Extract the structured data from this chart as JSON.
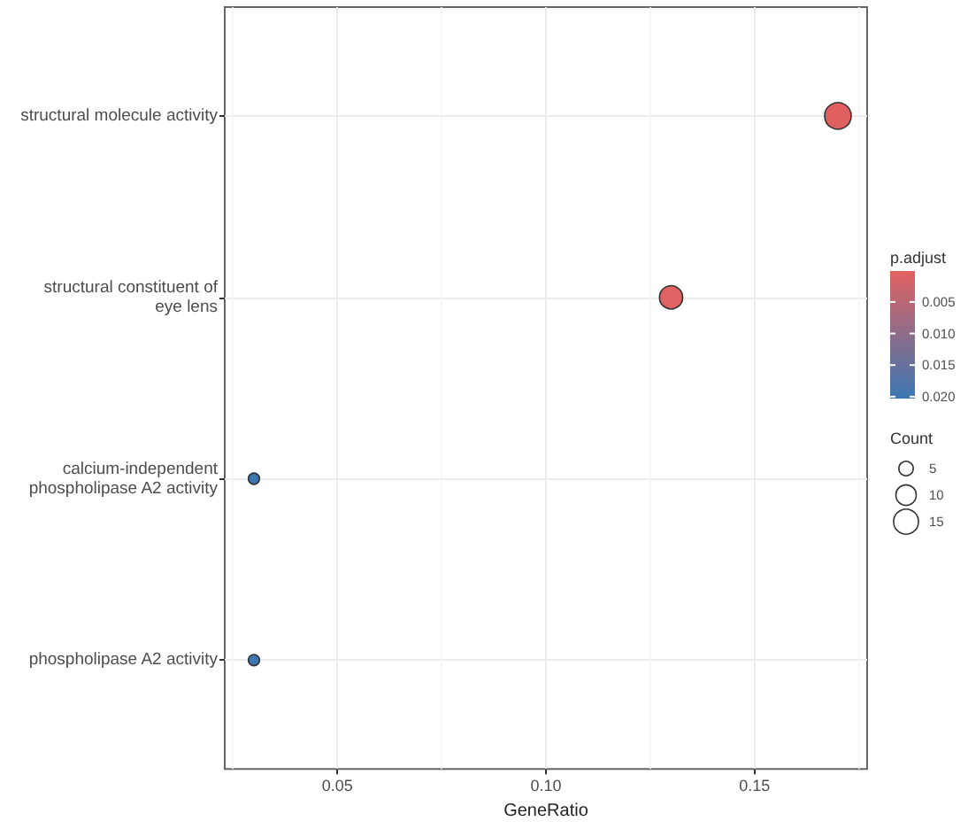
{
  "chart_data": {
    "type": "bubble",
    "orientation": "horizontal",
    "xlabel": "GeneRatio",
    "categories": [
      "structural molecule activity",
      "structural constituent of\neye lens",
      "calcium-independent\nphospholipase A2 activity",
      "phospholipase A2 activity"
    ],
    "values": [
      0.17,
      0.13,
      0.03,
      0.03
    ],
    "sizes": [
      17,
      13,
      3,
      3
    ],
    "size_legend": [
      5,
      10,
      15
    ],
    "cvalues": [
      0.0001,
      0.0003,
      0.0203,
      0.0203
    ],
    "colors": [
      "#e06060",
      "#e06262",
      "#3b77b3",
      "#3b77b3"
    ],
    "clabel": "p.adjust",
    "clim": [
      0.0203,
      0.0001
    ],
    "cticks": [
      0.005,
      {
        "value": 0.01,
        "label": "0.010"
      },
      0.015,
      {
        "value": 0.02,
        "label": "0.020"
      }
    ],
    "legend_title": "Count",
    "xlim": [
      0.023,
      0.177
    ],
    "xticks": [
      0.05,
      {
        "value": 0.1,
        "label": "0.10"
      },
      0.15
    ],
    "grid": true,
    "marker": "circle"
  }
}
